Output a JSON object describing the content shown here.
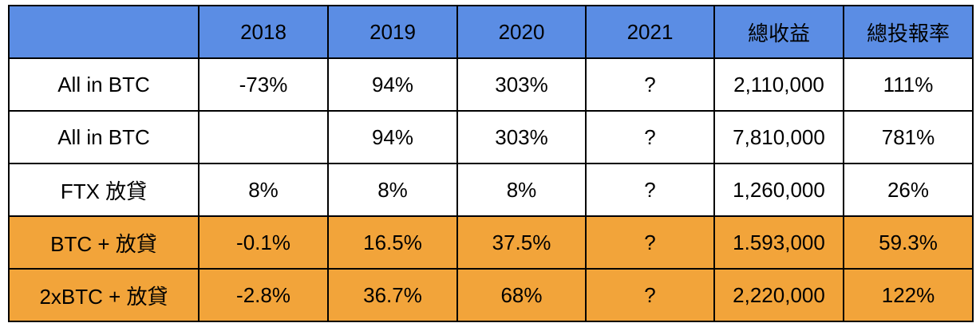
{
  "colors": {
    "header_bg": "#5b8de4",
    "highlight_row_bg": "#f2a43a",
    "plain_row_bg": "#ffffff",
    "border": "#000000"
  },
  "table": {
    "headers": [
      "",
      "2018",
      "2019",
      "2020",
      "2021",
      "總收益",
      "總投報率"
    ],
    "rows": [
      {
        "highlight": false,
        "cells": [
          "All in BTC",
          "-73%",
          "94%",
          "303%",
          "?",
          "2,110,000",
          "111%"
        ]
      },
      {
        "highlight": false,
        "cells": [
          "All in BTC",
          "",
          "94%",
          "303%",
          "?",
          "7,810,000",
          "781%"
        ]
      },
      {
        "highlight": false,
        "cells": [
          "FTX 放貸",
          "8%",
          "8%",
          "8%",
          "?",
          "1,260,000",
          "26%"
        ]
      },
      {
        "highlight": true,
        "cells": [
          "BTC + 放貸",
          "-0.1%",
          "16.5%",
          "37.5%",
          "?",
          "1.593,000",
          "59.3%"
        ]
      },
      {
        "highlight": true,
        "cells": [
          "2xBTC + 放貸",
          "-2.8%",
          "36.7%",
          "68%",
          "?",
          "2,220,000",
          "122%"
        ]
      }
    ]
  }
}
